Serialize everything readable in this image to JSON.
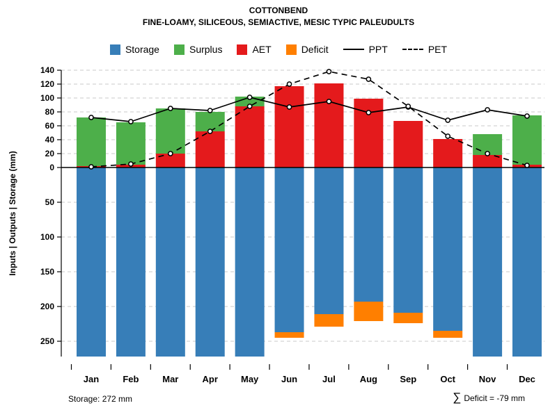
{
  "chart_data": {
    "type": "bar",
    "title": "COTTONBEND",
    "subtitle": "FINE-LOAMY, SILICEOUS, SEMIACTIVE, MESIC TYPIC PALEUDULTS",
    "ylabel": "Inputs | Outputs | Storage   (mm)",
    "xlabel": "",
    "ylim_upper": [
      0,
      140
    ],
    "ylim_lower_storage": [
      0,
      272
    ],
    "grid": "dashed-horizontal",
    "legend_position": "top-center",
    "months": [
      "Jan",
      "Feb",
      "Mar",
      "Apr",
      "May",
      "Jun",
      "Jul",
      "Aug",
      "Sep",
      "Oct",
      "Nov",
      "Dec"
    ],
    "y_axis_upper_ticks": [
      0,
      20,
      40,
      60,
      80,
      100,
      120,
      140
    ],
    "y_axis_lower_ticks": [
      50,
      100,
      150,
      200,
      250
    ],
    "series": [
      {
        "name": "AET",
        "type": "bar-up",
        "color": "#E41A1C",
        "values": [
          2,
          4,
          20,
          52,
          88,
          117,
          121,
          99,
          67,
          41,
          18,
          4
        ]
      },
      {
        "name": "Surplus",
        "type": "bar-up",
        "color": "#4DAF4A",
        "values": [
          70,
          61,
          65,
          28,
          14,
          0,
          0,
          0,
          0,
          0,
          30,
          71
        ]
      },
      {
        "name": "Storage",
        "type": "bar-down",
        "color": "#377EB8",
        "values": [
          272,
          272,
          272,
          272,
          272,
          237,
          211,
          193,
          209,
          235,
          272,
          272
        ]
      },
      {
        "name": "Deficit",
        "type": "bar-down",
        "color": "#FF7F00",
        "values": [
          0,
          0,
          0,
          0,
          0,
          8,
          18,
          28,
          15,
          10,
          0,
          0
        ]
      },
      {
        "name": "PPT",
        "type": "line",
        "color": "#000000",
        "values": [
          72,
          66,
          85,
          82,
          101,
          87,
          95,
          79,
          87,
          68,
          83,
          74
        ]
      },
      {
        "name": "PET",
        "type": "line-dashed",
        "color": "#000000",
        "values": [
          1,
          5,
          20,
          52,
          88,
          120,
          138,
          127,
          88,
          45,
          20,
          3
        ]
      }
    ],
    "legend": [
      {
        "label": "Storage",
        "type": "swatch",
        "color": "#377EB8"
      },
      {
        "label": "Surplus",
        "type": "swatch",
        "color": "#4DAF4A"
      },
      {
        "label": "AET",
        "type": "swatch",
        "color": "#E41A1C"
      },
      {
        "label": "Deficit",
        "type": "swatch",
        "color": "#FF7F00"
      },
      {
        "label": "PPT",
        "type": "line-solid"
      },
      {
        "label": "PET",
        "type": "line-dashed"
      }
    ],
    "annotations": {
      "storage": "Storage: 272 mm",
      "sigma": "∑",
      "deficit_sum": "Deficit = -79 mm"
    }
  }
}
